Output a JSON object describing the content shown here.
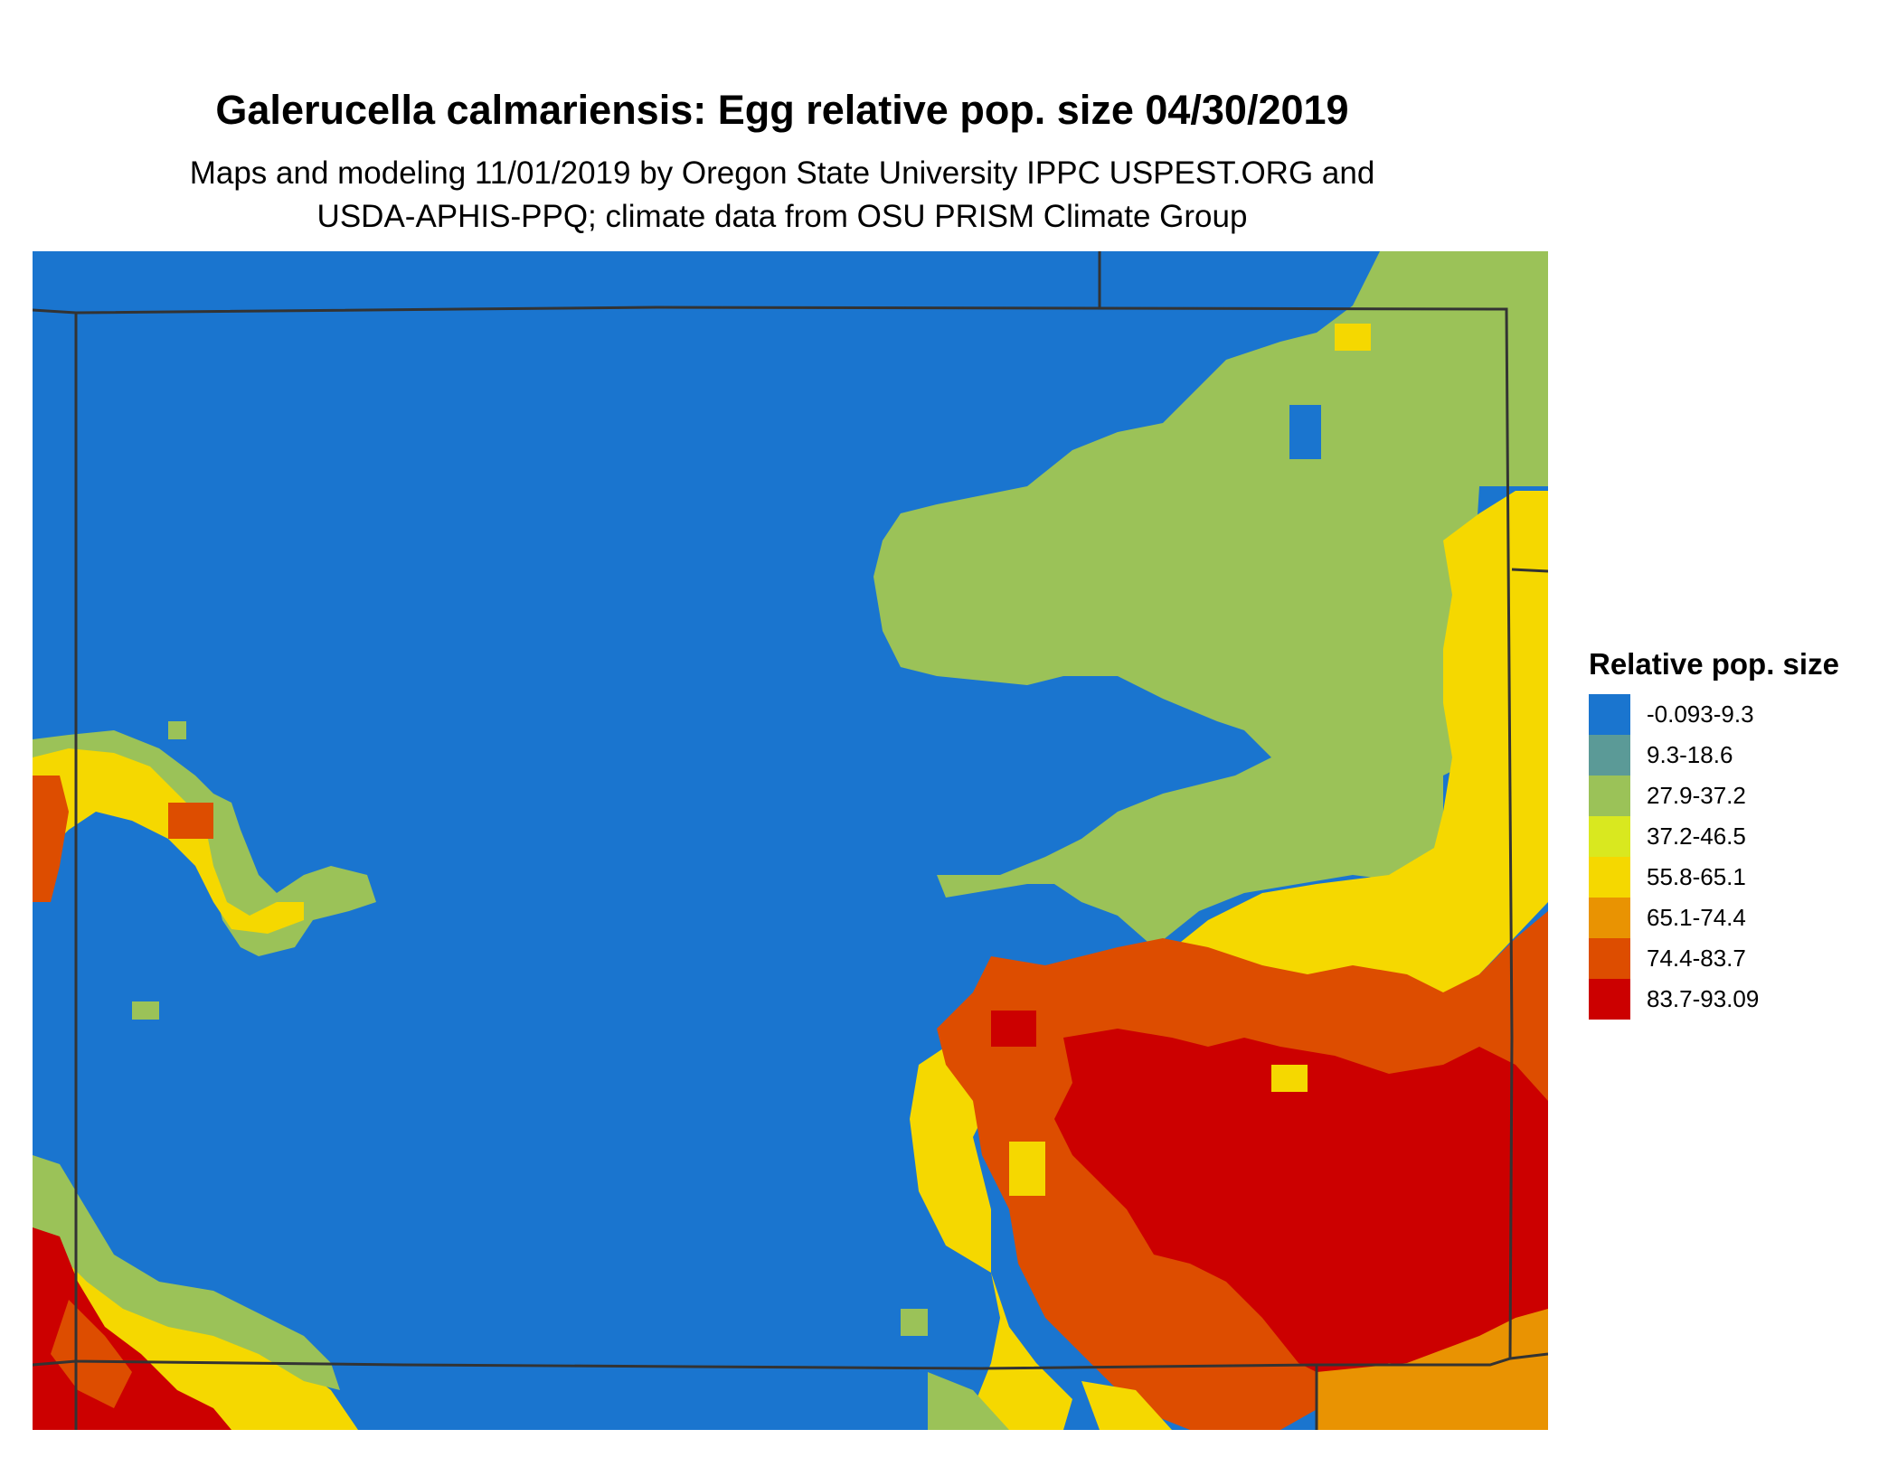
{
  "title": "Galerucella calmariensis: Egg relative pop. size 04/30/2019",
  "subtitle_line1": "Maps and modeling 11/01/2019 by Oregon State University IPPC USPEST.ORG and",
  "subtitle_line2": "USDA-APHIS-PPQ; climate data from OSU PRISM Climate Group",
  "legend": {
    "title": "Relative pop. size",
    "items": [
      {
        "label": "-0.093-9.3",
        "color": "#1a75cf"
      },
      {
        "label": "9.3-18.6",
        "color": "#5b9a97"
      },
      {
        "label": "27.9-37.2",
        "color": "#9bc258"
      },
      {
        "label": "37.2-46.5",
        "color": "#d9e81f"
      },
      {
        "label": "55.8-65.1",
        "color": "#f5d800"
      },
      {
        "label": "65.1-74.4",
        "color": "#e99302"
      },
      {
        "label": "74.4-83.7",
        "color": "#dd4d00"
      },
      {
        "label": "83.7-93.09",
        "color": "#cc0000"
      }
    ]
  },
  "colors": {
    "boundary": "#333333"
  }
}
